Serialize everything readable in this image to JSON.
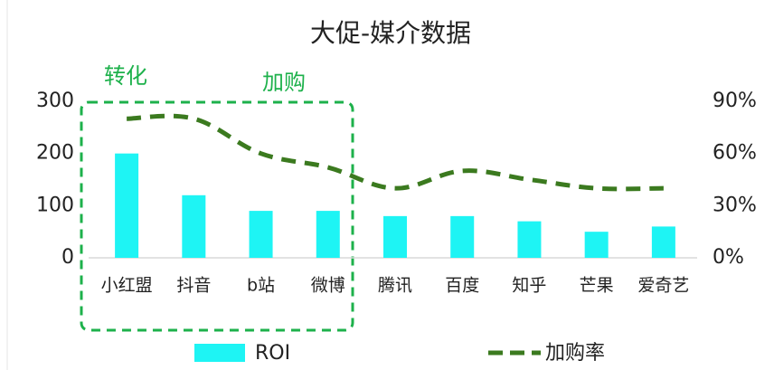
{
  "chart_data": {
    "type": "bar-line",
    "title": "大促-媒介数据",
    "annotations": [
      "转化",
      "加购"
    ],
    "categories": [
      "小红盟",
      "抖音",
      "b站",
      "微博",
      "腾讯",
      "百度",
      "知乎",
      "芒果",
      "爱奇艺"
    ],
    "series": [
      {
        "name": "ROI",
        "type": "bar",
        "color": "#1ef4f4",
        "values": [
          200,
          120,
          90,
          90,
          80,
          80,
          70,
          50,
          60
        ]
      },
      {
        "name": "加购率",
        "type": "line",
        "axis": "y2",
        "color": "#3b7a1f",
        "values": [
          80,
          80,
          60,
          52,
          40,
          50,
          45,
          40,
          40
        ]
      }
    ],
    "ylim": [
      0,
      300
    ],
    "yticks": [
      0,
      100,
      200,
      300
    ],
    "y2lim": [
      0,
      90
    ],
    "y2ticks": [
      {
        "value": 0,
        "label": "0%"
      },
      {
        "value": 30,
        "label": "30%"
      },
      {
        "value": 60,
        "label": "60%"
      },
      {
        "value": 90,
        "label": "90%"
      }
    ],
    "legend": "bottom"
  }
}
